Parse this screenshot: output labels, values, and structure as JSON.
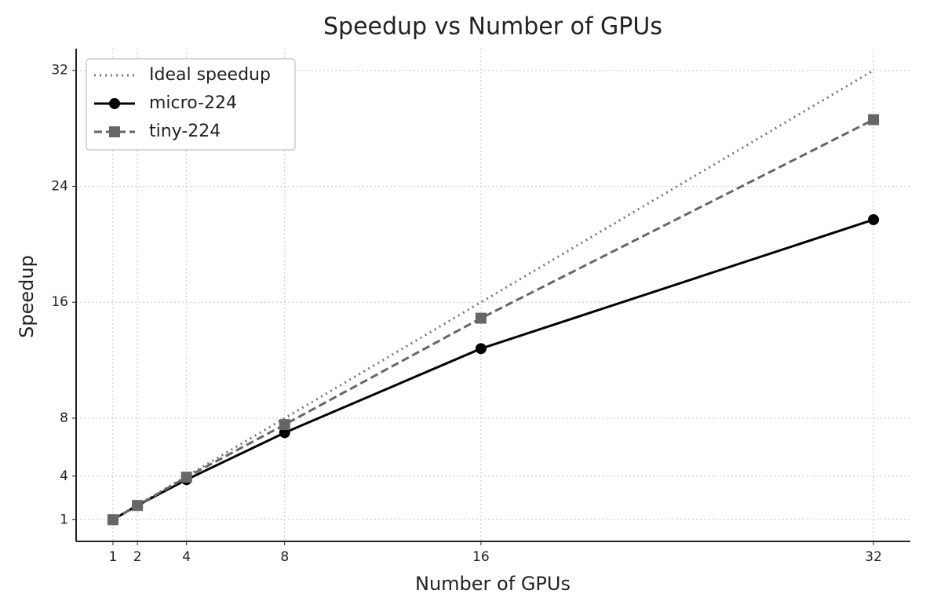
{
  "chart_data": {
    "type": "line",
    "title": "Speedup vs Number of GPUs",
    "x_label": "Number of GPUs",
    "y_label": "Speedup",
    "x": [
      1,
      2,
      4,
      8,
      16,
      32
    ],
    "series": [
      {
        "name": "Ideal speedup",
        "color": "#777777",
        "linestyle": "dotted",
        "marker": "none",
        "values": [
          1,
          2,
          4,
          8,
          16,
          32
        ]
      },
      {
        "name": "micro-224",
        "color": "#000000",
        "linestyle": "solid",
        "marker": "circle",
        "values": [
          1,
          1.98,
          3.76,
          7.0,
          12.8,
          21.7
        ]
      },
      {
        "name": "tiny-224",
        "color": "#666666",
        "linestyle": "dashed",
        "marker": "square",
        "values": [
          1,
          1.98,
          3.93,
          7.56,
          14.9,
          28.6
        ]
      }
    ],
    "xlim": [
      -0.5,
      33.5
    ],
    "ylim": [
      -0.5,
      33.5
    ],
    "xticks": [
      1,
      2,
      4,
      8,
      16,
      32
    ],
    "yticks": [
      1,
      4,
      8,
      16,
      24,
      32
    ],
    "grid": true,
    "legend": "upper left"
  }
}
